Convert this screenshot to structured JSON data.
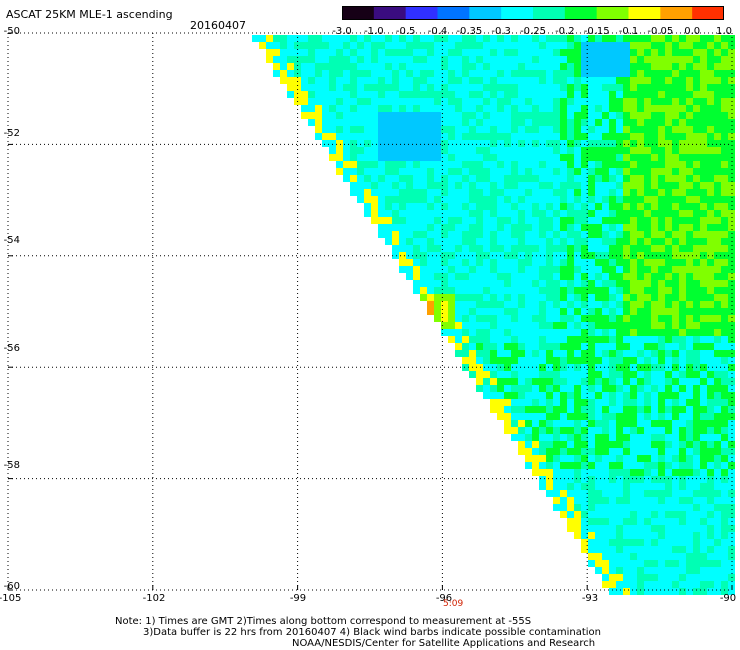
{
  "header": {
    "title": "ASCAT 25KM MLE-1 ascending",
    "date": "20160407"
  },
  "colorbar": {
    "labels": [
      "-3.0",
      "-1.0",
      "-0.5",
      "-0.4",
      "-0.35",
      "-0.3",
      "-0.25",
      "-0.2",
      "-0.15",
      "-0.1",
      "-0.05",
      "0.0",
      "1.0"
    ],
    "colors": [
      "#160016",
      "#3a0c80",
      "#3030ff",
      "#0074ff",
      "#00c8ff",
      "#00ffff",
      "#00ffb4",
      "#00ff30",
      "#80ff00",
      "#ffff00",
      "#ffa000",
      "#ff3000"
    ]
  },
  "map": {
    "lat_labels": [
      "-50",
      "-52",
      "-54",
      "-56",
      "-58",
      "-60"
    ],
    "lon_labels": [
      "-105",
      "-102",
      "-99",
      "-96",
      "-93",
      "-90"
    ],
    "time_label": "5:09",
    "field_colors": {
      "cyan": "#00ffff",
      "aqua_green": "#00ffb4",
      "green": "#00ff30",
      "light_blue": "#00c8ff",
      "yellow_green": "#80ff00",
      "yellow": "#ffff00",
      "orange": "#ffa000",
      "blue": "#0074ff"
    }
  },
  "notes": {
    "line1": "Note: 1) Times are GMT 2)Times along bottom correspond to measurement at -55S",
    "line2": "3)Data buffer is 22 hrs from 20160407 4) Black wind barbs indicate possible contamination",
    "line3": "NOAA/NESDIS/Center for Satellite Applications and Research"
  }
}
